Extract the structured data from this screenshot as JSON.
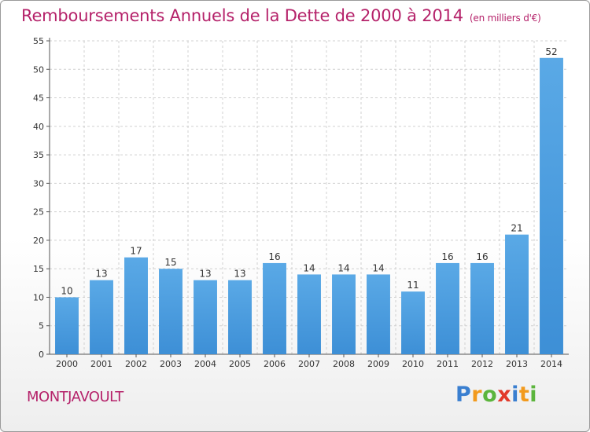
{
  "chart_data": {
    "type": "bar",
    "title": "Remboursements Annuels de la Dette de 2000 à 2014",
    "unit": "(en milliers d'€)",
    "categories": [
      "2000",
      "2001",
      "2002",
      "2003",
      "2004",
      "2005",
      "2006",
      "2007",
      "2008",
      "2009",
      "2010",
      "2011",
      "2012",
      "2013",
      "2014"
    ],
    "values": [
      10,
      13,
      17,
      15,
      13,
      13,
      16,
      14,
      14,
      14,
      11,
      16,
      16,
      21,
      52
    ],
    "ylim": [
      0,
      55
    ],
    "yticks": [
      0,
      5,
      10,
      15,
      20,
      25,
      30,
      35,
      40,
      45,
      50,
      55
    ],
    "grid": true,
    "bar_color": "#3d8fd6",
    "bar_color_light": "#5aa9e6"
  },
  "commune": "MONTJAVOULT",
  "logo": {
    "letters": [
      {
        "char": "P",
        "color": "#3a7fd0"
      },
      {
        "char": "r",
        "color": "#f29a1d"
      },
      {
        "char": "o",
        "color": "#5cb53d"
      },
      {
        "char": "x",
        "color": "#e23a2b"
      },
      {
        "char": "i",
        "color": "#3a7fd0"
      },
      {
        "char": "t",
        "color": "#f29a1d"
      },
      {
        "char": "i",
        "color": "#5cb53d"
      }
    ]
  },
  "colors": {
    "title": "#b5226a",
    "grid": "#d0d0d0"
  }
}
